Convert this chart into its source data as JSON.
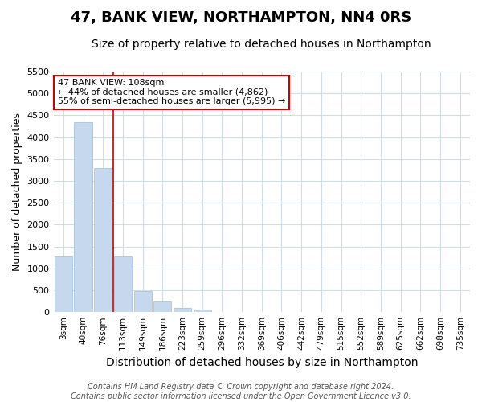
{
  "title": "47, BANK VIEW, NORTHAMPTON, NN4 0RS",
  "subtitle": "Size of property relative to detached houses in Northampton",
  "xlabel": "Distribution of detached houses by size in Northampton",
  "ylabel": "Number of detached properties",
  "footnote": "Contains HM Land Registry data © Crown copyright and database right 2024.\nContains public sector information licensed under the Open Government Licence v3.0.",
  "categories": [
    "3sqm",
    "40sqm",
    "76sqm",
    "113sqm",
    "149sqm",
    "186sqm",
    "223sqm",
    "259sqm",
    "296sqm",
    "332sqm",
    "369sqm",
    "406sqm",
    "442sqm",
    "479sqm",
    "515sqm",
    "552sqm",
    "589sqm",
    "625sqm",
    "662sqm",
    "698sqm",
    "735sqm"
  ],
  "bar_values": [
    1280,
    4350,
    3300,
    1280,
    480,
    240,
    100,
    50,
    0,
    0,
    0,
    0,
    0,
    0,
    0,
    0,
    0,
    0,
    0,
    0,
    0
  ],
  "bar_color": "#c5d8ed",
  "bar_edgecolor": "#a8c4e0",
  "ylim": [
    0,
    5500
  ],
  "yticks": [
    0,
    500,
    1000,
    1500,
    2000,
    2500,
    3000,
    3500,
    4000,
    4500,
    5000,
    5500
  ],
  "vline_x": 2.5,
  "vline_color": "#cc0000",
  "annotation_text": "47 BANK VIEW: 108sqm\n← 44% of detached houses are smaller (4,862)\n55% of semi-detached houses are larger (5,995) →",
  "annotation_box_color": "#ffffff",
  "annotation_border_color": "#cc0000",
  "background_color": "#ffffff",
  "plot_bg_color": "#ffffff",
  "grid_color": "#d0dce8",
  "title_fontsize": 13,
  "subtitle_fontsize": 10,
  "tick_fontsize": 7.5,
  "ylabel_fontsize": 9,
  "xlabel_fontsize": 10,
  "footnote_fontsize": 7
}
